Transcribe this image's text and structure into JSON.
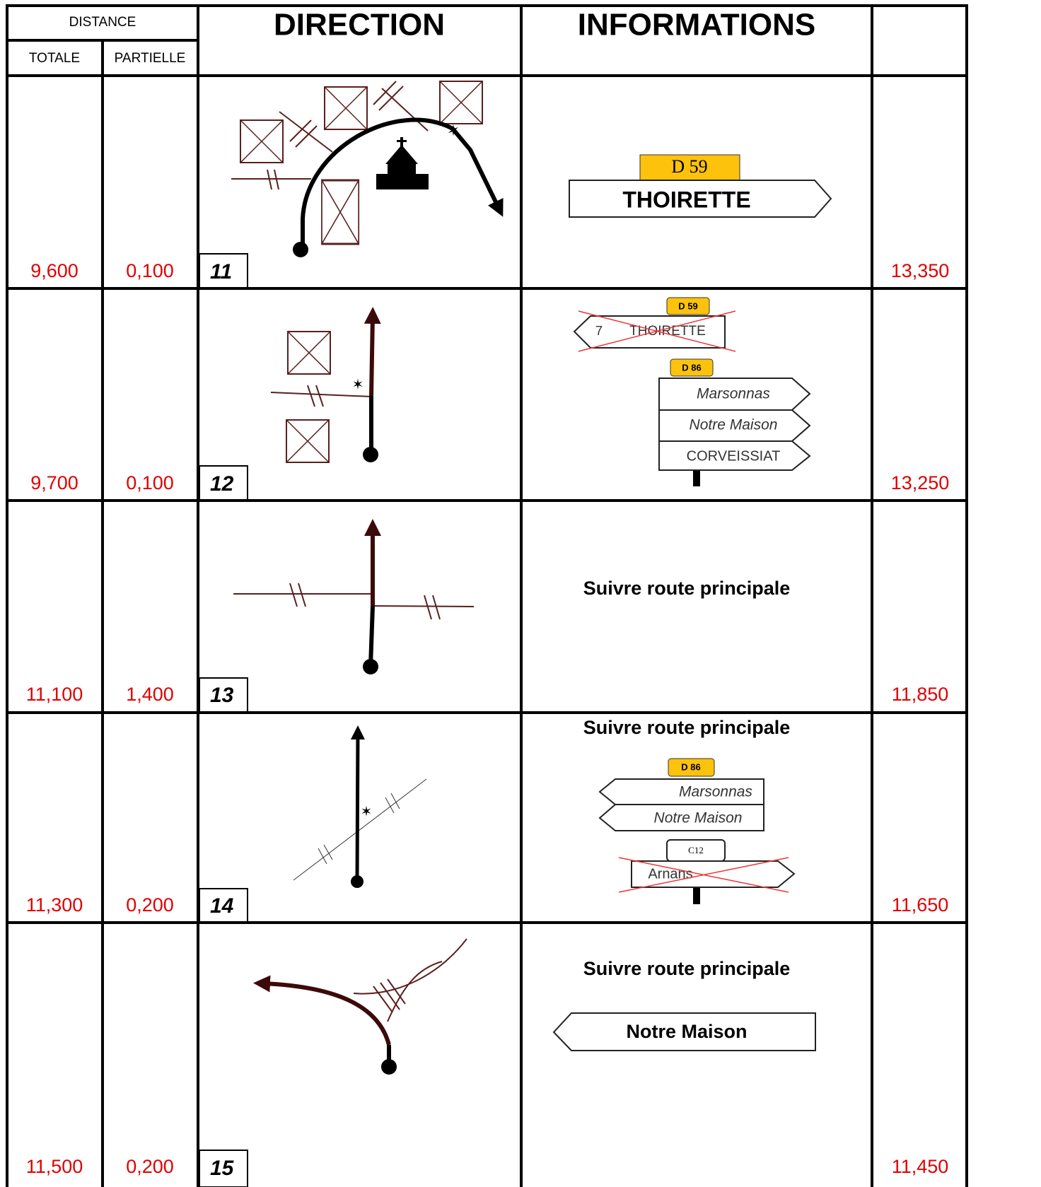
{
  "header": {
    "distance": "DISTANCE",
    "total": "TOTALE",
    "partial": "PARTIELLE",
    "direction": "DIRECTION",
    "information": "INFORMATIONS"
  },
  "rows": [
    {
      "step": "11",
      "total": "9,600",
      "partial": "0,100",
      "remaining": "13,350",
      "road": "D 59",
      "signs": [
        "THOIRETTE"
      ]
    },
    {
      "step": "12",
      "total": "9,700",
      "partial": "0,100",
      "remaining": "13,250",
      "crossed_road": "D 59",
      "crossed_sign": [
        "7",
        "THOIRETTE"
      ],
      "road": "D 86",
      "signs": [
        "Marsonnas",
        "Notre Maison",
        "CORVEISSIAT"
      ]
    },
    {
      "step": "13",
      "total": "11,100",
      "partial": "1,400",
      "remaining": "11,850",
      "instruction": "Suivre route principale"
    },
    {
      "step": "14",
      "total": "11,300",
      "partial": "0,200",
      "remaining": "11,650",
      "instruction": "Suivre route principale",
      "road": "D 86",
      "signs": [
        "Marsonnas",
        "Notre Maison"
      ],
      "crossed_road": "C12",
      "crossed_sign": [
        "Arnans"
      ]
    },
    {
      "step": "15",
      "total": "11,500",
      "partial": "0,200",
      "remaining": "11,450",
      "instruction": "Suivre route principale",
      "signs": [
        "Notre Maison"
      ]
    }
  ]
}
